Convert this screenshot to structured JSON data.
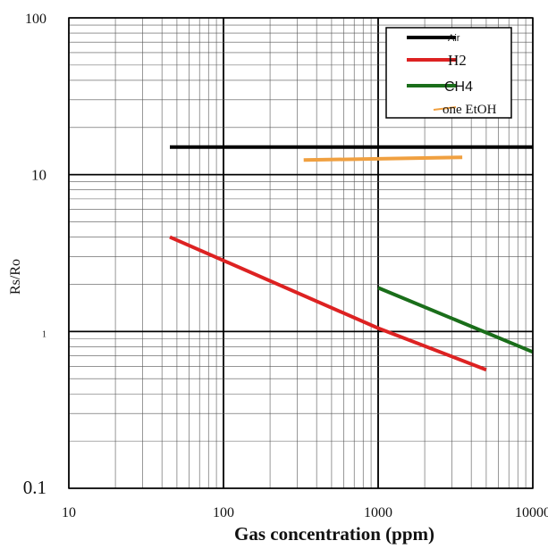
{
  "chart_data": {
    "type": "line",
    "title": "",
    "xlabel": "Gas concentration (ppm)",
    "ylabel": "Rs/Ro",
    "xscale": "log",
    "yscale": "log",
    "xlim": [
      10,
      10000
    ],
    "ylim": [
      0.1,
      100
    ],
    "x_ticks": [
      "10",
      "100",
      "1000",
      "10000"
    ],
    "y_ticks": [
      "0.1",
      "1",
      "10",
      "100"
    ],
    "grid": true,
    "legend_position": "top-right",
    "series": [
      {
        "name": "Air",
        "color": "#000000",
        "x": [
          45,
          10000
        ],
        "y": [
          15,
          15
        ]
      },
      {
        "name": "H2",
        "color": "#dd2222",
        "x": [
          45,
          1000,
          5000
        ],
        "y": [
          4.0,
          1.05,
          0.57
        ]
      },
      {
        "name": "CH4",
        "color": "#1a6e1a",
        "x": [
          1000,
          10000
        ],
        "y": [
          1.9,
          0.74
        ]
      },
      {
        "name": "one EtOH",
        "color": "#f0a040",
        "x": [
          330,
          3500
        ],
        "y": [
          12.4,
          12.9
        ]
      }
    ]
  }
}
